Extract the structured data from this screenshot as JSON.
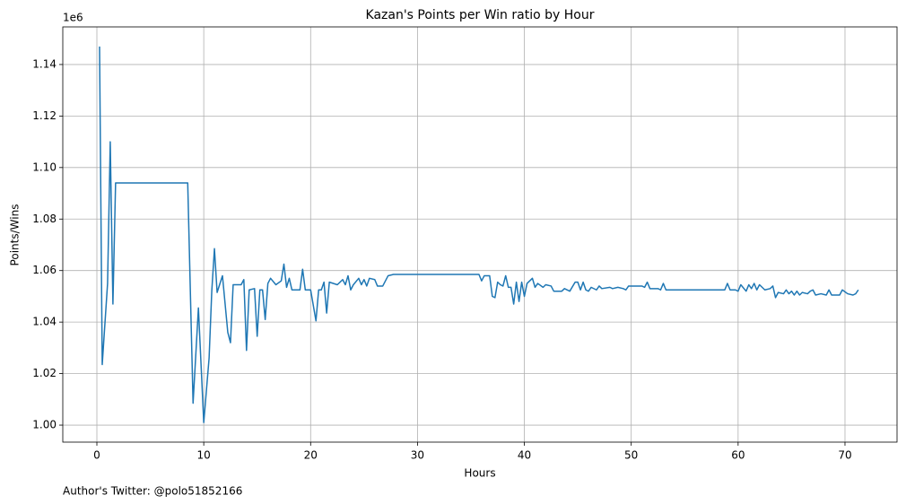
{
  "chart_data": {
    "type": "line",
    "title": "Kazan's Points per Win ratio by Hour",
    "x_label": "Hours",
    "y_label": "Points/Wins",
    "y_offset_label": "1e6",
    "footnote": "Author's Twitter: @polo51852166",
    "color": "#1f77b4",
    "grid": true,
    "xlim": [
      -3.19,
      74.87
    ],
    "xticks": [
      0,
      10,
      20,
      30,
      40,
      50,
      60,
      70
    ],
    "ylim": [
      993400,
      1154600
    ],
    "yticks": [
      {
        "value": 1000000,
        "label": "1.00"
      },
      {
        "value": 1020000,
        "label": "1.02"
      },
      {
        "value": 1040000,
        "label": "1.04"
      },
      {
        "value": 1060000,
        "label": "1.06"
      },
      {
        "value": 1080000,
        "label": "1.08"
      },
      {
        "value": 1100000,
        "label": "1.10"
      },
      {
        "value": 1120000,
        "label": "1.12"
      },
      {
        "value": 1140000,
        "label": "1.14"
      }
    ],
    "x": [
      0.25,
      0.5,
      1.0,
      1.25,
      1.5,
      1.75,
      8.5,
      9.0,
      9.5,
      10.0,
      10.5,
      10.75,
      11.0,
      11.25,
      11.75,
      12.25,
      12.5,
      12.75,
      13.5,
      13.75,
      14.0,
      14.25,
      14.75,
      15.0,
      15.25,
      15.5,
      15.75,
      16.0,
      16.25,
      16.75,
      17.25,
      17.5,
      17.75,
      18.0,
      18.25,
      19.0,
      19.25,
      19.5,
      20.0,
      20.5,
      20.75,
      21.0,
      21.25,
      21.5,
      21.75,
      22.5,
      23.0,
      23.25,
      23.5,
      23.75,
      24.0,
      24.5,
      24.75,
      25.0,
      25.25,
      25.5,
      26.0,
      26.25,
      26.75,
      27.0,
      27.25,
      27.75,
      35.75,
      36.0,
      36.25,
      36.75,
      37.0,
      37.25,
      37.5,
      37.75,
      38.0,
      38.25,
      38.5,
      38.75,
      39.0,
      39.25,
      39.5,
      39.75,
      40.0,
      40.25,
      40.75,
      41.0,
      41.25,
      41.75,
      42.0,
      42.5,
      42.75,
      43.5,
      43.75,
      44.25,
      44.75,
      45.0,
      45.25,
      45.5,
      45.75,
      46.0,
      46.25,
      46.75,
      47.0,
      47.25,
      48.0,
      48.25,
      48.75,
      49.25,
      49.5,
      49.75,
      51.0,
      51.25,
      51.5,
      51.75,
      52.5,
      52.75,
      53.0,
      53.25,
      58.75,
      59.0,
      59.25,
      59.75,
      60.0,
      60.25,
      60.75,
      61.0,
      61.25,
      61.5,
      61.75,
      62.0,
      62.5,
      63.0,
      63.25,
      63.5,
      63.75,
      64.25,
      64.5,
      64.75,
      65.0,
      65.25,
      65.5,
      65.75,
      66.0,
      66.5,
      66.75,
      67.0,
      67.25,
      67.75,
      68.25,
      68.5,
      68.75,
      69.5,
      69.75,
      70.25,
      70.75,
      71.0,
      71.25
    ],
    "values": [
      1147000,
      1023500,
      1055000,
      1110000,
      1047000,
      1094000,
      1094000,
      1008500,
      1045500,
      1001000,
      1026000,
      1052000,
      1068500,
      1051500,
      1058000,
      1036000,
      1032000,
      1054500,
      1054500,
      1056500,
      1029000,
      1052500,
      1053000,
      1034500,
      1052500,
      1052500,
      1041000,
      1055000,
      1057000,
      1054500,
      1056000,
      1062500,
      1053500,
      1057000,
      1052500,
      1052500,
      1060500,
      1052500,
      1052500,
      1040500,
      1052500,
      1052500,
      1055500,
      1043500,
      1055500,
      1054500,
      1056500,
      1054500,
      1058000,
      1052500,
      1054500,
      1057000,
      1054500,
      1056500,
      1054000,
      1057000,
      1056500,
      1054000,
      1054000,
      1056000,
      1058000,
      1058500,
      1058500,
      1056000,
      1058000,
      1058000,
      1050000,
      1049500,
      1055500,
      1054500,
      1054000,
      1058000,
      1053500,
      1053500,
      1047000,
      1055500,
      1048000,
      1055500,
      1050000,
      1055000,
      1057000,
      1053500,
      1055000,
      1053500,
      1054500,
      1054000,
      1052000,
      1052000,
      1053000,
      1052000,
      1055500,
      1055500,
      1052500,
      1055500,
      1052500,
      1052000,
      1053500,
      1052500,
      1054000,
      1053000,
      1053500,
      1053000,
      1053500,
      1053000,
      1052500,
      1054000,
      1054000,
      1053500,
      1055500,
      1053000,
      1053000,
      1052500,
      1055000,
      1052500,
      1052500,
      1055000,
      1052500,
      1052500,
      1052000,
      1054500,
      1052000,
      1054500,
      1053000,
      1055000,
      1052500,
      1054500,
      1052500,
      1053000,
      1054000,
      1049500,
      1051500,
      1051000,
      1052500,
      1051000,
      1052000,
      1050500,
      1052000,
      1050500,
      1051500,
      1051000,
      1052000,
      1052500,
      1050500,
      1051000,
      1050500,
      1052500,
      1050500,
      1050500,
      1052500,
      1051000,
      1050500,
      1051000,
      1052500
    ]
  }
}
